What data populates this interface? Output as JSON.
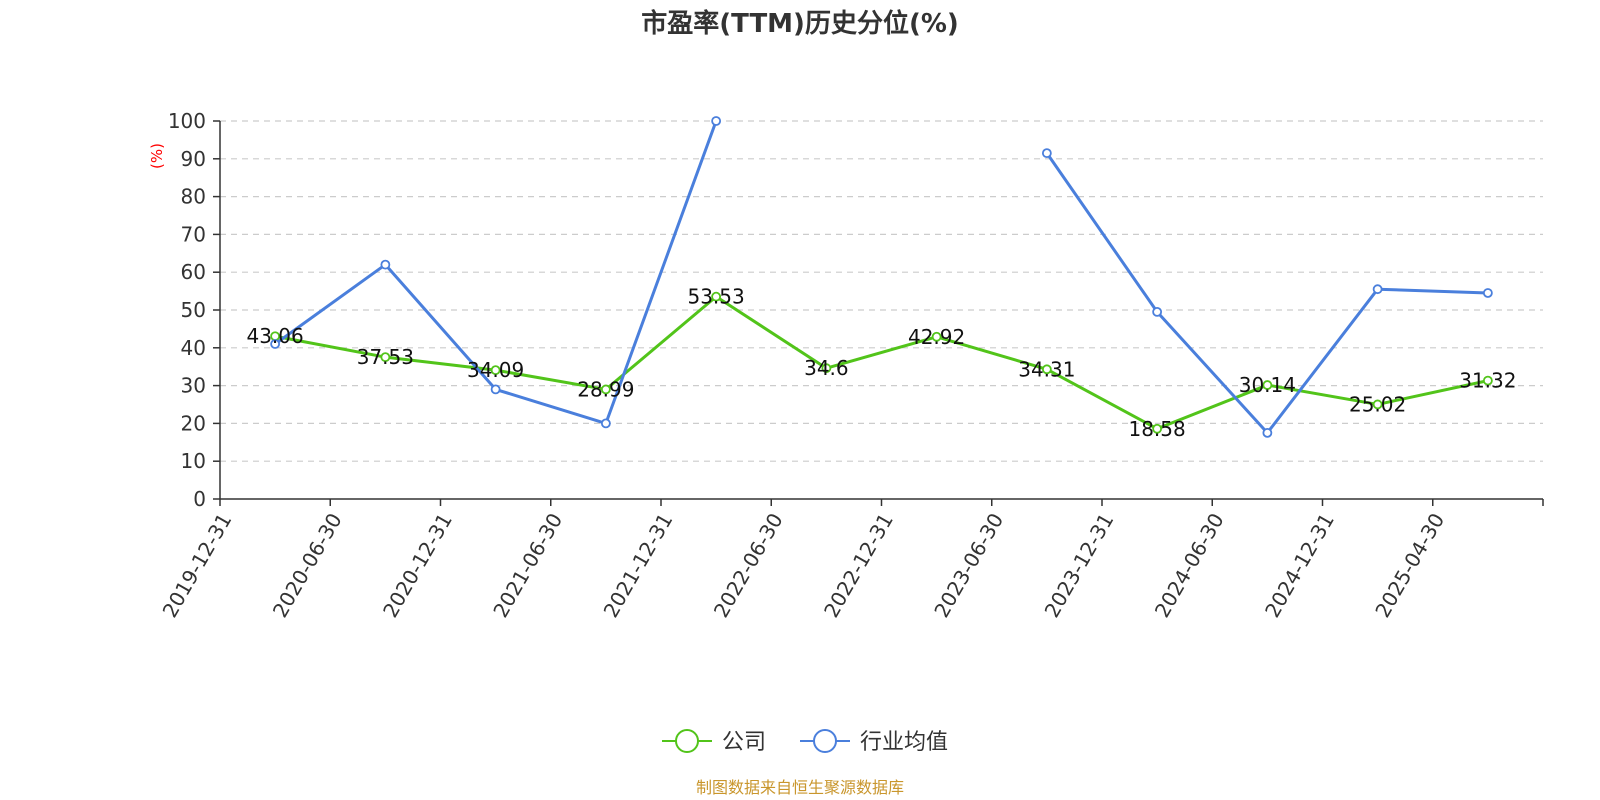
{
  "chart_data": {
    "type": "line",
    "title": "市盈率(TTM)历史分位(%)",
    "ylabel": "(%)",
    "ylim": [
      0,
      100
    ],
    "y_ticks": [
      "0",
      "10",
      "20",
      "30",
      "40",
      "50",
      "60",
      "70",
      "80",
      "90",
      "100"
    ],
    "categories": [
      "2019-12-31",
      "2020-06-30",
      "2020-12-31",
      "2021-06-30",
      "2021-12-31",
      "2022-06-30",
      "2022-12-31",
      "2023-06-30",
      "2023-12-31",
      "2024-06-30",
      "2024-12-31",
      "2025-04-30"
    ],
    "grid": true,
    "legend_position": "bottom",
    "series": [
      {
        "name": "公司",
        "color": "#52c41a",
        "values": [
          43.06,
          37.53,
          34.09,
          28.99,
          53.53,
          34.6,
          42.92,
          34.31,
          18.58,
          30.14,
          25.02,
          31.32
        ],
        "labels": [
          "43.06",
          "37.53",
          "34.09",
          "28.99",
          "53.53",
          "34.6",
          "42.92",
          "34.31",
          "18.58",
          "30.14",
          "25.02",
          "31.32"
        ]
      },
      {
        "name": "行业均值",
        "color": "#4a7fdc",
        "values": [
          41,
          62,
          29,
          20,
          100,
          null,
          null,
          91.5,
          49.5,
          17.5,
          55.5,
          54.5
        ]
      }
    ],
    "source": "制图数据来自恒生聚源数据库"
  }
}
